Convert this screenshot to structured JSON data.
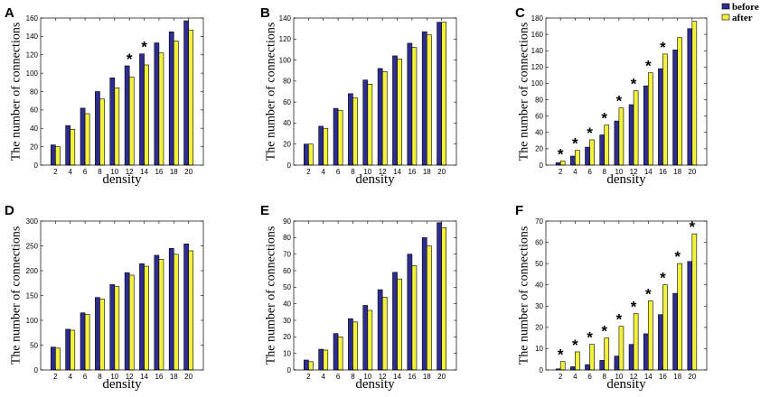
{
  "series_colors": {
    "before": "#2e2c8e",
    "after": "#f2f23c"
  },
  "chart_data": [
    {
      "panel": "A",
      "type": "bar",
      "x": [
        2,
        4,
        6,
        8,
        10,
        12,
        14,
        16,
        18,
        20
      ],
      "series": [
        {
          "name": "before",
          "values": [
            22,
            43,
            62,
            80,
            95,
            108,
            121,
            133,
            145,
            157
          ]
        },
        {
          "name": "after",
          "values": [
            20,
            39,
            56,
            72,
            84,
            96,
            109,
            122,
            135,
            147
          ]
        }
      ],
      "xlabel": "density",
      "ylabel": "The number of connections",
      "ylim": [
        0,
        160
      ],
      "yticks": [
        0,
        20,
        40,
        60,
        80,
        100,
        120,
        140,
        160
      ],
      "annotations": [
        {
          "x": 12,
          "text": "*"
        },
        {
          "x": 14,
          "text": "*"
        }
      ],
      "grid": false
    },
    {
      "panel": "B",
      "type": "bar",
      "x": [
        2,
        4,
        6,
        8,
        10,
        12,
        14,
        16,
        18,
        20
      ],
      "series": [
        {
          "name": "before",
          "values": [
            20,
            37,
            54,
            68,
            81,
            92,
            104,
            116,
            127,
            136
          ]
        },
        {
          "name": "after",
          "values": [
            20,
            35,
            52,
            64,
            77,
            89,
            101,
            112,
            124,
            136
          ]
        }
      ],
      "xlabel": "density",
      "ylabel": "The number of connections",
      "ylim": [
        0,
        140
      ],
      "yticks": [
        0,
        20,
        40,
        60,
        80,
        100,
        120,
        140
      ],
      "annotations": [],
      "grid": false
    },
    {
      "panel": "C",
      "type": "bar",
      "x": [
        2,
        4,
        6,
        8,
        10,
        12,
        14,
        16,
        18,
        20
      ],
      "series": [
        {
          "name": "before",
          "values": [
            3,
            11,
            22,
            37,
            54,
            74,
            97,
            118,
            141,
            167
          ]
        },
        {
          "name": "after",
          "values": [
            5,
            18,
            31,
            49,
            70,
            91,
            113,
            136,
            156,
            176
          ]
        }
      ],
      "xlabel": "density",
      "ylabel": "The number of connections",
      "ylim": [
        0,
        180
      ],
      "yticks": [
        0,
        20,
        40,
        60,
        80,
        100,
        120,
        140,
        160,
        180
      ],
      "annotations": [
        {
          "x": 2,
          "text": "*"
        },
        {
          "x": 4,
          "text": "*"
        },
        {
          "x": 6,
          "text": "*"
        },
        {
          "x": 8,
          "text": "*"
        },
        {
          "x": 10,
          "text": "*"
        },
        {
          "x": 12,
          "text": "*"
        },
        {
          "x": 14,
          "text": "*"
        },
        {
          "x": 16,
          "text": "*"
        }
      ],
      "legend": "top-right",
      "grid": false
    },
    {
      "panel": "D",
      "type": "bar",
      "x": [
        2,
        4,
        6,
        8,
        10,
        12,
        14,
        16,
        18,
        20
      ],
      "series": [
        {
          "name": "before",
          "values": [
            46,
            82,
            115,
            146,
            172,
            196,
            214,
            231,
            245,
            254
          ]
        },
        {
          "name": "after",
          "values": [
            44,
            80,
            112,
            143,
            168,
            191,
            209,
            223,
            233,
            240
          ]
        }
      ],
      "xlabel": "density",
      "ylabel": "The number of connections",
      "ylim": [
        0,
        300
      ],
      "yticks": [
        0,
        50,
        100,
        150,
        200,
        250,
        300
      ],
      "annotations": [],
      "grid": false
    },
    {
      "panel": "E",
      "type": "bar",
      "x": [
        2,
        4,
        6,
        8,
        10,
        12,
        14,
        16,
        18,
        20
      ],
      "series": [
        {
          "name": "before",
          "values": [
            6,
            12.5,
            22,
            31,
            39,
            48.5,
            59,
            70,
            80,
            89
          ]
        },
        {
          "name": "after",
          "values": [
            5,
            12,
            20,
            29,
            36,
            44,
            55,
            63,
            75,
            86
          ]
        }
      ],
      "xlabel": "density",
      "ylabel": "The number of connections",
      "ylim": [
        0,
        90
      ],
      "yticks": [
        0,
        10,
        20,
        30,
        40,
        50,
        60,
        70,
        80,
        90
      ],
      "annotations": [],
      "grid": false
    },
    {
      "panel": "F",
      "type": "bar",
      "x": [
        2,
        4,
        6,
        8,
        10,
        12,
        14,
        16,
        18,
        20
      ],
      "series": [
        {
          "name": "before",
          "values": [
            0.5,
            1.5,
            2.5,
            4.5,
            6.5,
            12,
            17,
            26,
            36,
            51
          ]
        },
        {
          "name": "after",
          "values": [
            4,
            8.5,
            12,
            15,
            20.5,
            26.5,
            32.5,
            40,
            50,
            64
          ]
        }
      ],
      "xlabel": "density",
      "ylabel": "The number of connections",
      "ylim": [
        0,
        70
      ],
      "yticks": [
        0,
        10,
        20,
        30,
        40,
        50,
        60,
        70
      ],
      "annotations": [
        {
          "x": 2,
          "text": "*"
        },
        {
          "x": 4,
          "text": "*"
        },
        {
          "x": 6,
          "text": "*"
        },
        {
          "x": 8,
          "text": "*"
        },
        {
          "x": 10,
          "text": "*"
        },
        {
          "x": 12,
          "text": "*"
        },
        {
          "x": 14,
          "text": "*"
        },
        {
          "x": 16,
          "text": "*"
        },
        {
          "x": 18,
          "text": "*"
        },
        {
          "x": 20,
          "text": "*"
        }
      ],
      "grid": false
    }
  ]
}
